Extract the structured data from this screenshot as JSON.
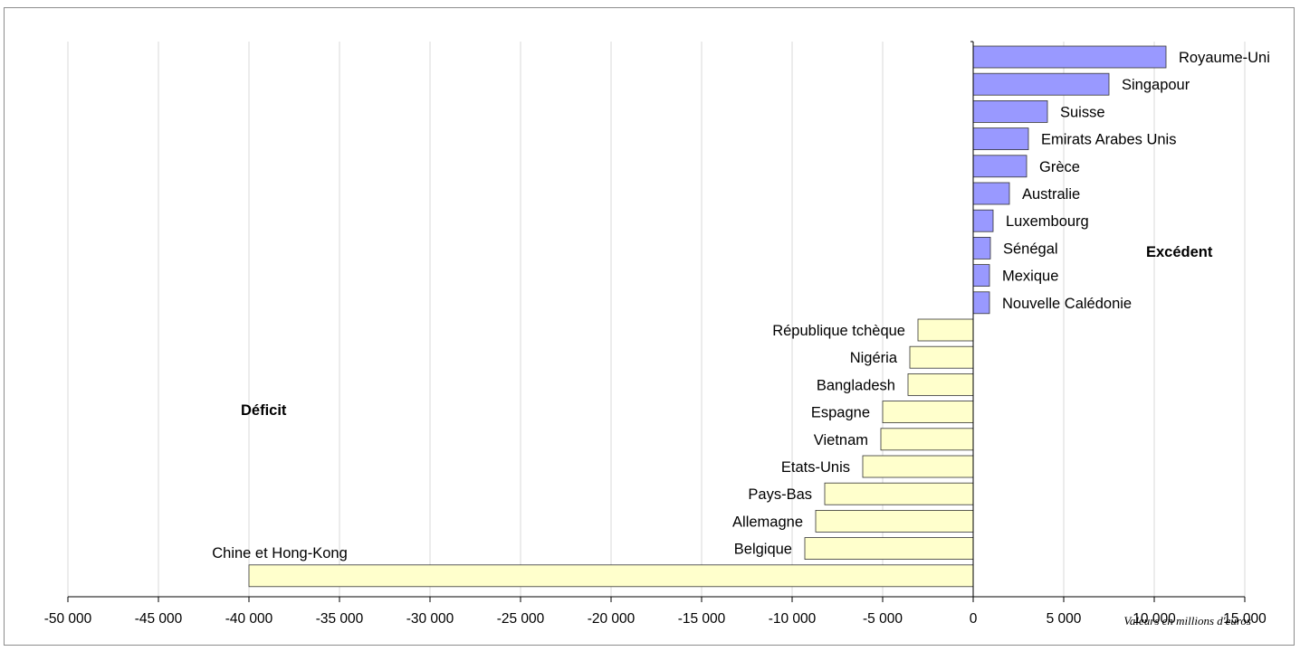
{
  "chart_data": {
    "type": "bar",
    "orientation": "horizontal",
    "categories": [
      "Royaume-Uni",
      "Singapour",
      "Suisse",
      "Emirats Arabes Unis",
      "Grèce",
      "Australie",
      "Luxembourg",
      "Sénégal",
      "Mexique",
      "Nouvelle Calédonie",
      "République tchèque",
      "Nigéria",
      "Bangladesh",
      "Espagne",
      "Vietnam",
      "Etats-Unis",
      "Pays-Bas",
      "Allemagne",
      "Belgique",
      "Chine et Hong-Kong"
    ],
    "values": [
      10650,
      7500,
      4100,
      3050,
      2950,
      2000,
      1100,
      950,
      900,
      900,
      -3050,
      -3500,
      -3600,
      -5000,
      -5100,
      -6100,
      -8200,
      -8700,
      -9300,
      -40000
    ],
    "xlim": [
      -50000,
      15000
    ],
    "xticks": [
      -50000,
      -45000,
      -40000,
      -35000,
      -30000,
      -25000,
      -20000,
      -15000,
      -10000,
      -5000,
      0,
      5000,
      10000,
      15000
    ],
    "xtick_labels": [
      "-50 000",
      "-45 000",
      "-40 000",
      "-35 000",
      "-30 000",
      "-25 000",
      "-20 000",
      "-15 000",
      "-10 000",
      "-5 000",
      "0",
      "5 000",
      "10 000",
      "15 000"
    ],
    "grid": "vertical",
    "annotations": [
      "Excédent",
      "Déficit"
    ],
    "unit_note": "Valeurs en millions d'euros",
    "colors": {
      "surplus": "#9999ff",
      "deficit": "#ffffcc",
      "bar_stroke": "#333333",
      "grid": "#d9d9d9"
    }
  }
}
